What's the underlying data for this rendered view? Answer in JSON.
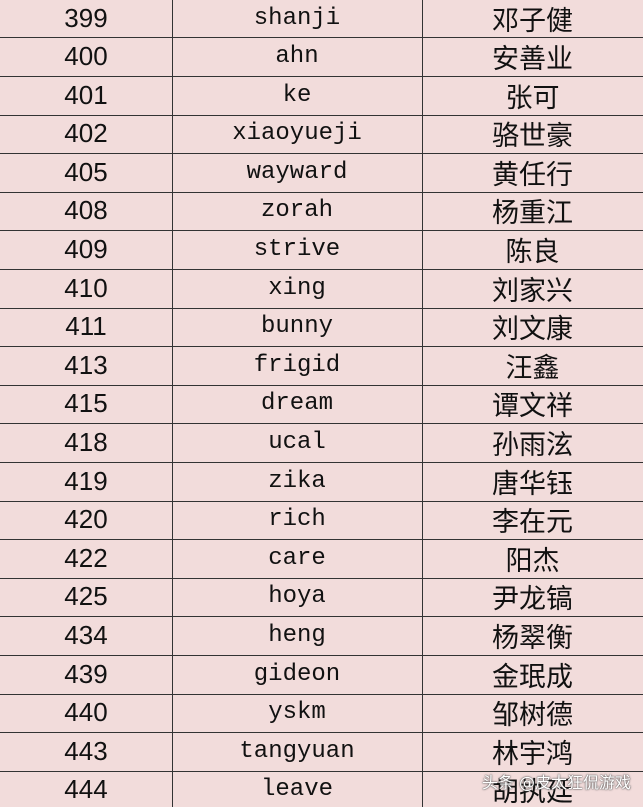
{
  "table": {
    "rows": [
      [
        "399",
        "shanji",
        "邓子健"
      ],
      [
        "400",
        "ahn",
        "安善业"
      ],
      [
        "401",
        "ke",
        "张可"
      ],
      [
        "402",
        "xiaoyueji",
        "骆世豪"
      ],
      [
        "405",
        "wayward",
        "黄任行"
      ],
      [
        "408",
        "zorah",
        "杨重江"
      ],
      [
        "409",
        "strive",
        "陈良"
      ],
      [
        "410",
        "xing",
        "刘家兴"
      ],
      [
        "411",
        "bunny",
        "刘文康"
      ],
      [
        "413",
        "frigid",
        "汪鑫"
      ],
      [
        "415",
        "dream",
        "谭文祥"
      ],
      [
        "418",
        "ucal",
        "孙雨泫"
      ],
      [
        "419",
        "zika",
        "唐华钰"
      ],
      [
        "420",
        "rich",
        "李在元"
      ],
      [
        "422",
        "care",
        "阳杰"
      ],
      [
        "425",
        "hoya",
        "尹龙镐"
      ],
      [
        "434",
        "heng",
        "杨翠衡"
      ],
      [
        "439",
        "gideon",
        "金珉成"
      ],
      [
        "440",
        "yskm",
        "邹树德"
      ],
      [
        "443",
        "tangyuan",
        "林宇鸿"
      ],
      [
        "444",
        "leave",
        "胡执廷"
      ]
    ]
  },
  "watermark": "头条 @皮太狂侃游戏"
}
